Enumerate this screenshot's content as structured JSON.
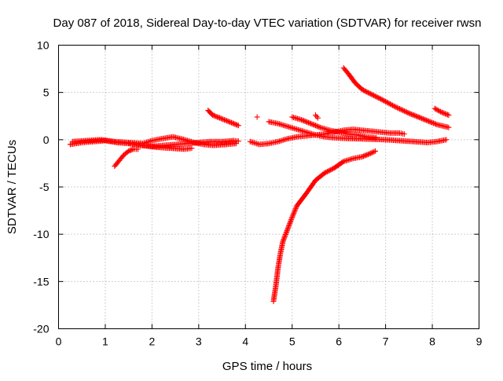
{
  "chart_data": {
    "type": "scatter",
    "title": "Day 087 of 2018, Sidereal Day-to-day VTEC variation (SDTVAR) for receiver rwsn",
    "xlabel": "GPS time / hours",
    "ylabel": "SDTVAR / TECUs",
    "xlim": [
      0,
      9
    ],
    "ylim": [
      -20,
      10
    ],
    "xticks": [
      "0",
      "1",
      "2",
      "3",
      "4",
      "5",
      "6",
      "7",
      "8",
      "9"
    ],
    "yticks": [
      "10",
      "5",
      "0",
      "-5",
      "-10",
      "-15",
      "-20"
    ],
    "grid": true,
    "marker": "plus",
    "color": "#ff0000",
    "series": [
      {
        "points": [
          [
            0.25,
            -0.5
          ],
          [
            0.5,
            -0.3
          ],
          [
            0.75,
            -0.2
          ],
          [
            1.0,
            -0.1
          ],
          [
            1.25,
            -0.3
          ],
          [
            1.5,
            -0.4
          ],
          [
            1.75,
            -0.6
          ],
          [
            2.0,
            -0.7
          ],
          [
            2.25,
            -0.6
          ],
          [
            2.5,
            -0.5
          ],
          [
            2.75,
            -0.4
          ],
          [
            3.0,
            -0.3
          ],
          [
            3.25,
            -0.2
          ],
          [
            3.5,
            -0.2
          ],
          [
            3.75,
            -0.1
          ],
          [
            3.85,
            -0.15
          ]
        ]
      },
      {
        "points": [
          [
            0.3,
            -0.2
          ],
          [
            0.6,
            -0.1
          ],
          [
            0.9,
            0.0
          ],
          [
            1.2,
            -0.2
          ],
          [
            1.5,
            -0.3
          ],
          [
            1.8,
            -0.4
          ],
          [
            2.0,
            -0.1
          ],
          [
            2.2,
            0.1
          ],
          [
            2.45,
            0.3
          ],
          [
            2.7,
            0.0
          ],
          [
            2.9,
            -0.3
          ],
          [
            3.1,
            -0.5
          ],
          [
            3.3,
            -0.6
          ],
          [
            3.6,
            -0.5
          ],
          [
            3.8,
            -0.4
          ]
        ]
      },
      {
        "points": [
          [
            1.2,
            -2.8
          ],
          [
            1.3,
            -2.2
          ],
          [
            1.4,
            -1.6
          ],
          [
            1.5,
            -1.2
          ],
          [
            1.6,
            -1.0
          ],
          [
            1.7,
            -1.0
          ]
        ]
      },
      {
        "points": [
          [
            1.5,
            -0.4
          ],
          [
            1.8,
            -0.6
          ],
          [
            2.1,
            -0.8
          ],
          [
            2.4,
            -0.9
          ],
          [
            2.7,
            -1.0
          ],
          [
            2.85,
            -0.9
          ]
        ]
      },
      {
        "points": [
          [
            3.2,
            3.1
          ],
          [
            3.3,
            2.6
          ],
          [
            3.5,
            2.2
          ],
          [
            3.7,
            1.8
          ],
          [
            3.85,
            1.5
          ]
        ]
      },
      {
        "points": [
          [
            4.25,
            2.4
          ]
        ]
      },
      {
        "points": [
          [
            4.1,
            -0.2
          ],
          [
            4.3,
            -0.5
          ],
          [
            4.5,
            -0.4
          ],
          [
            4.7,
            -0.2
          ],
          [
            4.9,
            0.1
          ],
          [
            5.1,
            0.3
          ],
          [
            5.3,
            0.4
          ],
          [
            5.5,
            0.5
          ],
          [
            5.7,
            0.6
          ],
          [
            5.9,
            0.8
          ],
          [
            6.1,
            1.0
          ],
          [
            6.3,
            1.1
          ],
          [
            6.5,
            1.0
          ],
          [
            6.7,
            0.9
          ],
          [
            6.9,
            0.8
          ],
          [
            7.1,
            0.7
          ],
          [
            7.3,
            0.7
          ],
          [
            7.4,
            0.6
          ]
        ]
      },
      {
        "points": [
          [
            4.5,
            1.9
          ],
          [
            4.7,
            1.7
          ],
          [
            4.9,
            1.4
          ],
          [
            5.1,
            1.1
          ],
          [
            5.3,
            0.8
          ],
          [
            5.5,
            0.5
          ],
          [
            5.7,
            0.3
          ],
          [
            5.9,
            0.2
          ],
          [
            6.1,
            0.15
          ],
          [
            6.4,
            0.1
          ],
          [
            6.7,
            0.05
          ],
          [
            7.0,
            0.0
          ],
          [
            7.3,
            -0.1
          ],
          [
            7.6,
            -0.2
          ],
          [
            7.9,
            -0.3
          ],
          [
            8.1,
            -0.2
          ],
          [
            8.3,
            0.0
          ]
        ]
      },
      {
        "points": [
          [
            5.0,
            2.4
          ],
          [
            5.2,
            2.1
          ],
          [
            5.4,
            1.7
          ],
          [
            5.6,
            1.3
          ],
          [
            5.8,
            1.0
          ],
          [
            6.0,
            0.8
          ],
          [
            6.2,
            0.6
          ],
          [
            6.4,
            0.5
          ],
          [
            6.6,
            0.3
          ],
          [
            6.8,
            0.2
          ]
        ]
      },
      {
        "points": [
          [
            5.5,
            2.6
          ],
          [
            5.55,
            2.3
          ]
        ]
      },
      {
        "points": [
          [
            6.1,
            7.6
          ],
          [
            6.2,
            7.0
          ],
          [
            6.35,
            6.0
          ],
          [
            6.5,
            5.3
          ],
          [
            6.7,
            4.8
          ],
          [
            6.9,
            4.3
          ],
          [
            7.2,
            3.5
          ],
          [
            7.5,
            2.8
          ],
          [
            7.8,
            2.2
          ],
          [
            8.1,
            1.6
          ],
          [
            8.35,
            1.3
          ]
        ]
      },
      {
        "points": [
          [
            8.05,
            3.3
          ],
          [
            8.2,
            2.9
          ],
          [
            8.35,
            2.6
          ]
        ]
      },
      {
        "points": [
          [
            4.6,
            -17.1
          ],
          [
            4.65,
            -15.5
          ],
          [
            4.7,
            -13.5
          ],
          [
            4.75,
            -12.0
          ],
          [
            4.8,
            -10.8
          ],
          [
            4.9,
            -9.5
          ],
          [
            5.0,
            -8.2
          ],
          [
            5.1,
            -7.0
          ],
          [
            5.3,
            -5.7
          ],
          [
            5.5,
            -4.3
          ],
          [
            5.7,
            -3.5
          ],
          [
            5.9,
            -3.0
          ],
          [
            6.1,
            -2.3
          ],
          [
            6.3,
            -2.0
          ],
          [
            6.5,
            -1.8
          ],
          [
            6.7,
            -1.4
          ],
          [
            6.78,
            -1.2
          ]
        ]
      }
    ]
  }
}
